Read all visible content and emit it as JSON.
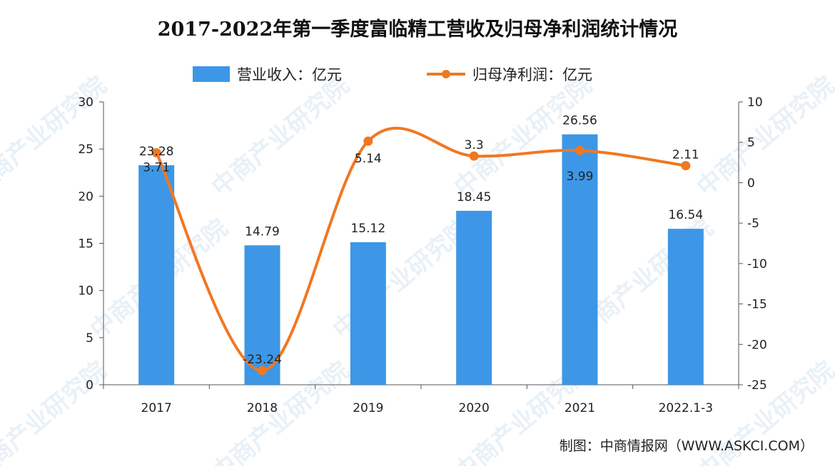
{
  "chart_data": {
    "type": "bar+line",
    "title": "2017-2022年第一季度富临精工营收及归母净利润统计情况",
    "categories": [
      "2017",
      "2018",
      "2019",
      "2020",
      "2021",
      "2022.1-3"
    ],
    "series": [
      {
        "name": "营业收入：亿元",
        "type": "bar",
        "axis": "left",
        "values": [
          23.28,
          14.79,
          15.12,
          18.45,
          26.56,
          16.54
        ],
        "labels": [
          "23.28",
          "14.79",
          "15.12",
          "18.45",
          "26.56",
          "16.54"
        ],
        "color": "#3d97e6"
      },
      {
        "name": "归母净利润：亿元",
        "type": "line",
        "axis": "right",
        "smooth": true,
        "values": [
          3.71,
          -23.24,
          5.14,
          3.3,
          3.99,
          2.11
        ],
        "labels": [
          "3.71",
          "-23.24",
          "5.14",
          "3.3",
          "3.99",
          "2.11"
        ],
        "color": "#f07822"
      }
    ],
    "y_left": {
      "lim": [
        0,
        30
      ],
      "ticks": [
        "0",
        "5",
        "10",
        "15",
        "20",
        "25",
        "30"
      ]
    },
    "y_right": {
      "lim": [
        -25,
        10
      ],
      "ticks": [
        "-25",
        "-20",
        "-15",
        "-10",
        "-5",
        "0",
        "5",
        "10"
      ]
    },
    "grid": false,
    "legend_position": "top"
  },
  "source": "制图：中商情报网（WWW.ASKCI.COM）",
  "watermark": "中商产业研究院"
}
